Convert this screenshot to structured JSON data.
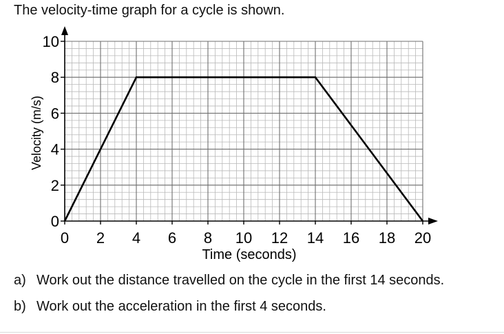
{
  "intro": "The velocity-time graph for a cycle is shown.",
  "questions": [
    {
      "label": "a)",
      "text": "Work out the distance travelled on the cycle in the first 14 seconds."
    },
    {
      "label": "b)",
      "text": "Work out the acceleration in the first 4 seconds."
    }
  ],
  "chart_data": {
    "type": "line",
    "title": "",
    "xlabel": "Time (seconds)",
    "ylabel": "Velocity (m/s)",
    "xlim": [
      0,
      20
    ],
    "ylim": [
      0,
      10
    ],
    "xticks": [
      0,
      2,
      4,
      6,
      8,
      10,
      12,
      14,
      16,
      18,
      20
    ],
    "yticks": [
      0,
      2,
      4,
      6,
      8,
      10
    ],
    "grid": true,
    "minor_grid": true,
    "series": [
      {
        "x": [
          0,
          4,
          14,
          20
        ],
        "y": [
          0,
          8,
          8,
          0
        ]
      }
    ]
  }
}
